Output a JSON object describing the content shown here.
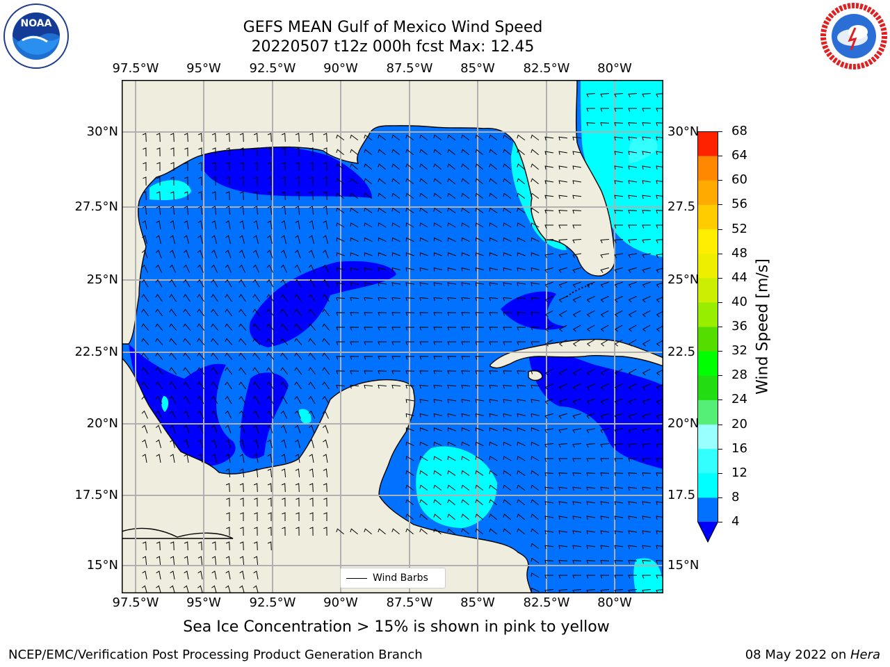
{
  "title": {
    "line1": "GEFS MEAN Gulf of Mexico Wind Speed",
    "line2": "20220507 t12z 000h fcst   Max: 12.45"
  },
  "logos": {
    "left": {
      "name": "NOAA",
      "ring_text": "NATIONAL OCEANIC AND ATMOSPHERIC ADMINISTRATION · U.S. DEPARTMENT OF COMMERCE"
    },
    "right": {
      "name": "NATIONAL WEATHER SERVICE"
    }
  },
  "axes": {
    "lon_labels": [
      "97.5°W",
      "95°W",
      "92.5°W",
      "90°W",
      "87.5°W",
      "85°W",
      "82.5°W",
      "80°W"
    ],
    "lat_labels_left": [
      "30°N",
      "27.5°N",
      "25°N",
      "22.5°N",
      "20°N",
      "17.5°N",
      "15°N"
    ],
    "lat_labels_right": [
      "30°N",
      "27.5",
      "25°N",
      "22.5",
      "20°N",
      "17.5",
      "15°N"
    ]
  },
  "legend": {
    "label": "Wind Barbs"
  },
  "colorbar": {
    "label": "Wind Speed [m/s]",
    "ticks": [
      "4",
      "8",
      "12",
      "16",
      "20",
      "24",
      "28",
      "32",
      "36",
      "40",
      "44",
      "48",
      "52",
      "56",
      "60",
      "64",
      "68"
    ],
    "colors": [
      "#0072ff",
      "#00ffff",
      "#33ffff",
      "#66ffff",
      "#99ffff",
      "#55ee77",
      "#22dd11",
      "#00ff00",
      "#55ee00",
      "#88ee00",
      "#bbee00",
      "#eeee00",
      "#ffee00",
      "#ffcc00",
      "#ffaa00",
      "#ff8800",
      "#ff5500",
      "#ff2200",
      "#ff0000"
    ],
    "extend_color": "#0000ff"
  },
  "map": {
    "land_color": "#eeedde",
    "colors": {
      "lt4": "#0000ff",
      "c4_8": "#0072ff",
      "c8_12": "#00ffff"
    }
  },
  "subtitle": "Sea Ice Concentration > 15% is shown in pink to yellow",
  "footer": {
    "left": "NCEP/EMC/Verification Post Processing Product Generation Branch",
    "right_date": "08 May 2022 on ",
    "right_host": "Hera"
  }
}
